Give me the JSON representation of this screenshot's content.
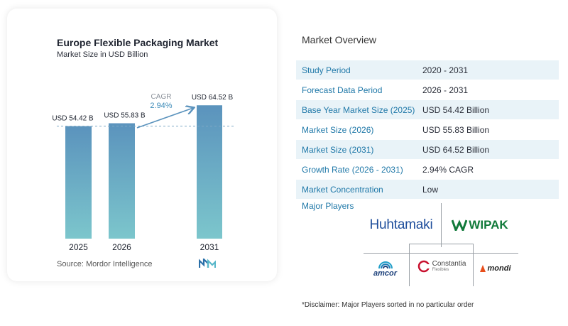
{
  "chart_card": {
    "title": "Europe Flexible Packaging Market",
    "subtitle": "Market Size in USD Billion",
    "source": "Source:  Mordor Intelligence"
  },
  "chart_data": {
    "type": "bar",
    "title": "Europe Flexible Packaging Market",
    "subtitle": "Market Size in USD Billion",
    "categories": [
      "2025",
      "2026",
      "2031"
    ],
    "values": [
      54.42,
      55.83,
      64.52
    ],
    "value_labels": [
      "USD 54.42 B",
      "USD 55.83 B",
      "USD 64.52 B"
    ],
    "cagr_label": "CAGR",
    "cagr_value": "2.94%",
    "bar_color_top": "#5b93bd",
    "bar_color_bottom": "#7cc6cc",
    "arrow_color": "#5b93bd"
  },
  "overview": {
    "title": "Market Overview",
    "rows": [
      {
        "label": "Study Period",
        "value": "2020 - 2031"
      },
      {
        "label": "Forecast Data Period",
        "value": "2026 - 2031"
      },
      {
        "label": "Base Year Market Size (2025)",
        "value": "USD 54.42 Billion"
      },
      {
        "label": "Market Size (2026)",
        "value": "USD 55.83 Billion"
      },
      {
        "label": "Market Size (2031)",
        "value": "USD 64.52 Billion"
      },
      {
        "label": "Growth Rate (2026 - 2031)",
        "value": "2.94% CAGR"
      },
      {
        "label": "Market Concentration",
        "value": "Low"
      }
    ]
  },
  "players": {
    "title": "Major Players",
    "huhtamaki": "Huhtamaki",
    "wipak": "WIPAK",
    "amcor": "amcor",
    "constantia": "Constantia",
    "constantia_sub": "Flexibles",
    "mondi": "mondi"
  },
  "disclaimer": "*Disclaimer: Major Players sorted in no particular order"
}
